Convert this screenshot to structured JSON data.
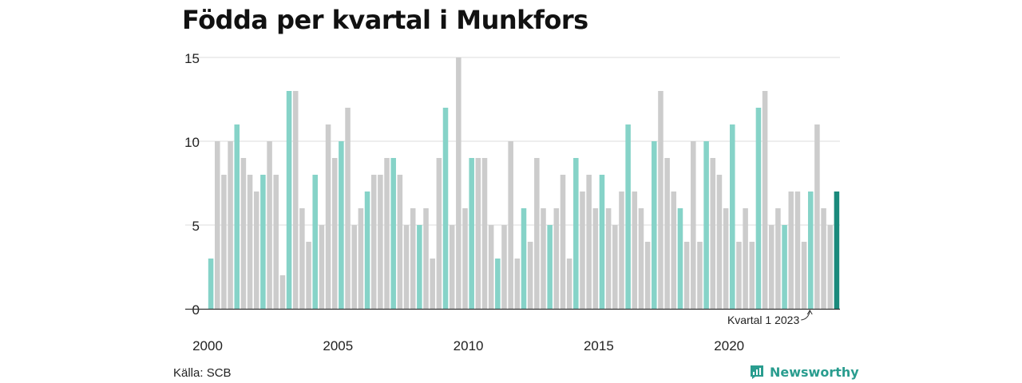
{
  "title": "Födda per kvartal i Munkfors",
  "source": "Källa: SCB",
  "brand": {
    "name": "Newsworthy",
    "icon": "newsworthy-logo-icon"
  },
  "colors": {
    "highlight": "#86d3c8",
    "default": "#cccccc",
    "latest": "#1a8a7c",
    "grid": "#dddddd",
    "axis": "#333333"
  },
  "chart_data": {
    "type": "bar",
    "title": "Födda per kvartal i Munkfors",
    "xlabel": "",
    "ylabel": "",
    "ylim": [
      0,
      15
    ],
    "y_ticks": [
      0,
      5,
      10,
      15
    ],
    "x_tick_labels": [
      "2000",
      "2005",
      "2010",
      "2015",
      "2020"
    ],
    "grid": true,
    "annotation": {
      "text": "Kvartal 1 2023",
      "quarter": "2023 Q1"
    },
    "highlighted_quarter": "Q1",
    "categories": [
      "2000 Q1",
      "2000 Q2",
      "2000 Q3",
      "2000 Q4",
      "2001 Q1",
      "2001 Q2",
      "2001 Q3",
      "2001 Q4",
      "2002 Q1",
      "2002 Q2",
      "2002 Q3",
      "2002 Q4",
      "2003 Q1",
      "2003 Q2",
      "2003 Q3",
      "2003 Q4",
      "2004 Q1",
      "2004 Q2",
      "2004 Q3",
      "2004 Q4",
      "2005 Q1",
      "2005 Q2",
      "2005 Q3",
      "2005 Q4",
      "2006 Q1",
      "2006 Q2",
      "2006 Q3",
      "2006 Q4",
      "2007 Q1",
      "2007 Q2",
      "2007 Q3",
      "2007 Q4",
      "2008 Q1",
      "2008 Q2",
      "2008 Q3",
      "2008 Q4",
      "2009 Q1",
      "2009 Q2",
      "2009 Q3",
      "2009 Q4",
      "2010 Q1",
      "2010 Q2",
      "2010 Q3",
      "2010 Q4",
      "2011 Q1",
      "2011 Q2",
      "2011 Q3",
      "2011 Q4",
      "2012 Q1",
      "2012 Q2",
      "2012 Q3",
      "2012 Q4",
      "2013 Q1",
      "2013 Q2",
      "2013 Q3",
      "2013 Q4",
      "2014 Q1",
      "2014 Q2",
      "2014 Q3",
      "2014 Q4",
      "2015 Q1",
      "2015 Q2",
      "2015 Q3",
      "2015 Q4",
      "2016 Q1",
      "2016 Q2",
      "2016 Q3",
      "2016 Q4",
      "2017 Q1",
      "2017 Q2",
      "2017 Q3",
      "2017 Q4",
      "2018 Q1",
      "2018 Q2",
      "2018 Q3",
      "2018 Q4",
      "2019 Q1",
      "2019 Q2",
      "2019 Q3",
      "2019 Q4",
      "2020 Q1",
      "2020 Q2",
      "2020 Q3",
      "2020 Q4",
      "2021 Q1",
      "2021 Q2",
      "2021 Q3",
      "2021 Q4",
      "2022 Q1",
      "2022 Q2",
      "2022 Q3",
      "2022 Q4",
      "2023 Q1",
      "2023 Q2",
      "2023 Q3",
      "2023 Q4",
      "2024 Q1"
    ],
    "values": [
      3,
      10,
      8,
      10,
      11,
      9,
      8,
      7,
      8,
      10,
      8,
      2,
      13,
      13,
      6,
      4,
      8,
      5,
      11,
      9,
      10,
      12,
      5,
      6,
      7,
      8,
      8,
      9,
      9,
      8,
      5,
      6,
      5,
      6,
      3,
      9,
      12,
      5,
      15,
      6,
      9,
      9,
      9,
      5,
      3,
      5,
      10,
      3,
      6,
      4,
      9,
      6,
      5,
      6,
      8,
      3,
      9,
      7,
      8,
      6,
      8,
      6,
      5,
      7,
      11,
      7,
      6,
      4,
      10,
      13,
      9,
      7,
      6,
      4,
      10,
      4,
      10,
      9,
      8,
      6,
      11,
      4,
      6,
      4,
      12,
      13,
      5,
      6,
      5,
      7,
      7,
      4,
      7,
      11,
      6,
      5,
      7
    ]
  }
}
